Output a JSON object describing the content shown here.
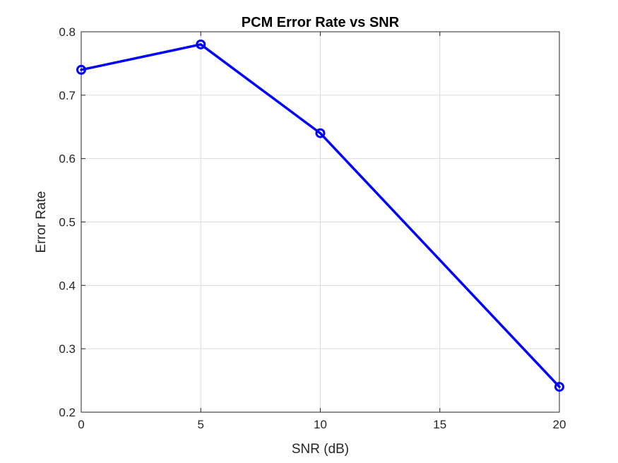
{
  "colors": {
    "series": "#0000ff",
    "grid": "#dcdcdc",
    "axes": "#262626",
    "background": "#ffffff"
  },
  "chart_data": {
    "type": "line",
    "title": "PCM Error Rate vs SNR",
    "xlabel": "SNR (dB)",
    "ylabel": "Error Rate",
    "xlim": [
      0,
      20
    ],
    "ylim": [
      0.2,
      0.8
    ],
    "xticks": [
      0,
      5,
      10,
      15,
      20
    ],
    "xtick_labels": [
      "0",
      "5",
      "10",
      "15",
      "20"
    ],
    "yticks": [
      0.2,
      0.3,
      0.4,
      0.5,
      0.6,
      0.7,
      0.8
    ],
    "ytick_labels": [
      "0.2",
      "0.3",
      "0.4",
      "0.5",
      "0.6",
      "0.7",
      "0.8"
    ],
    "grid": true,
    "marker": "circle",
    "series": [
      {
        "x": [
          0,
          5,
          10,
          20
        ],
        "y": [
          0.74,
          0.78,
          0.64,
          0.24
        ]
      }
    ]
  }
}
